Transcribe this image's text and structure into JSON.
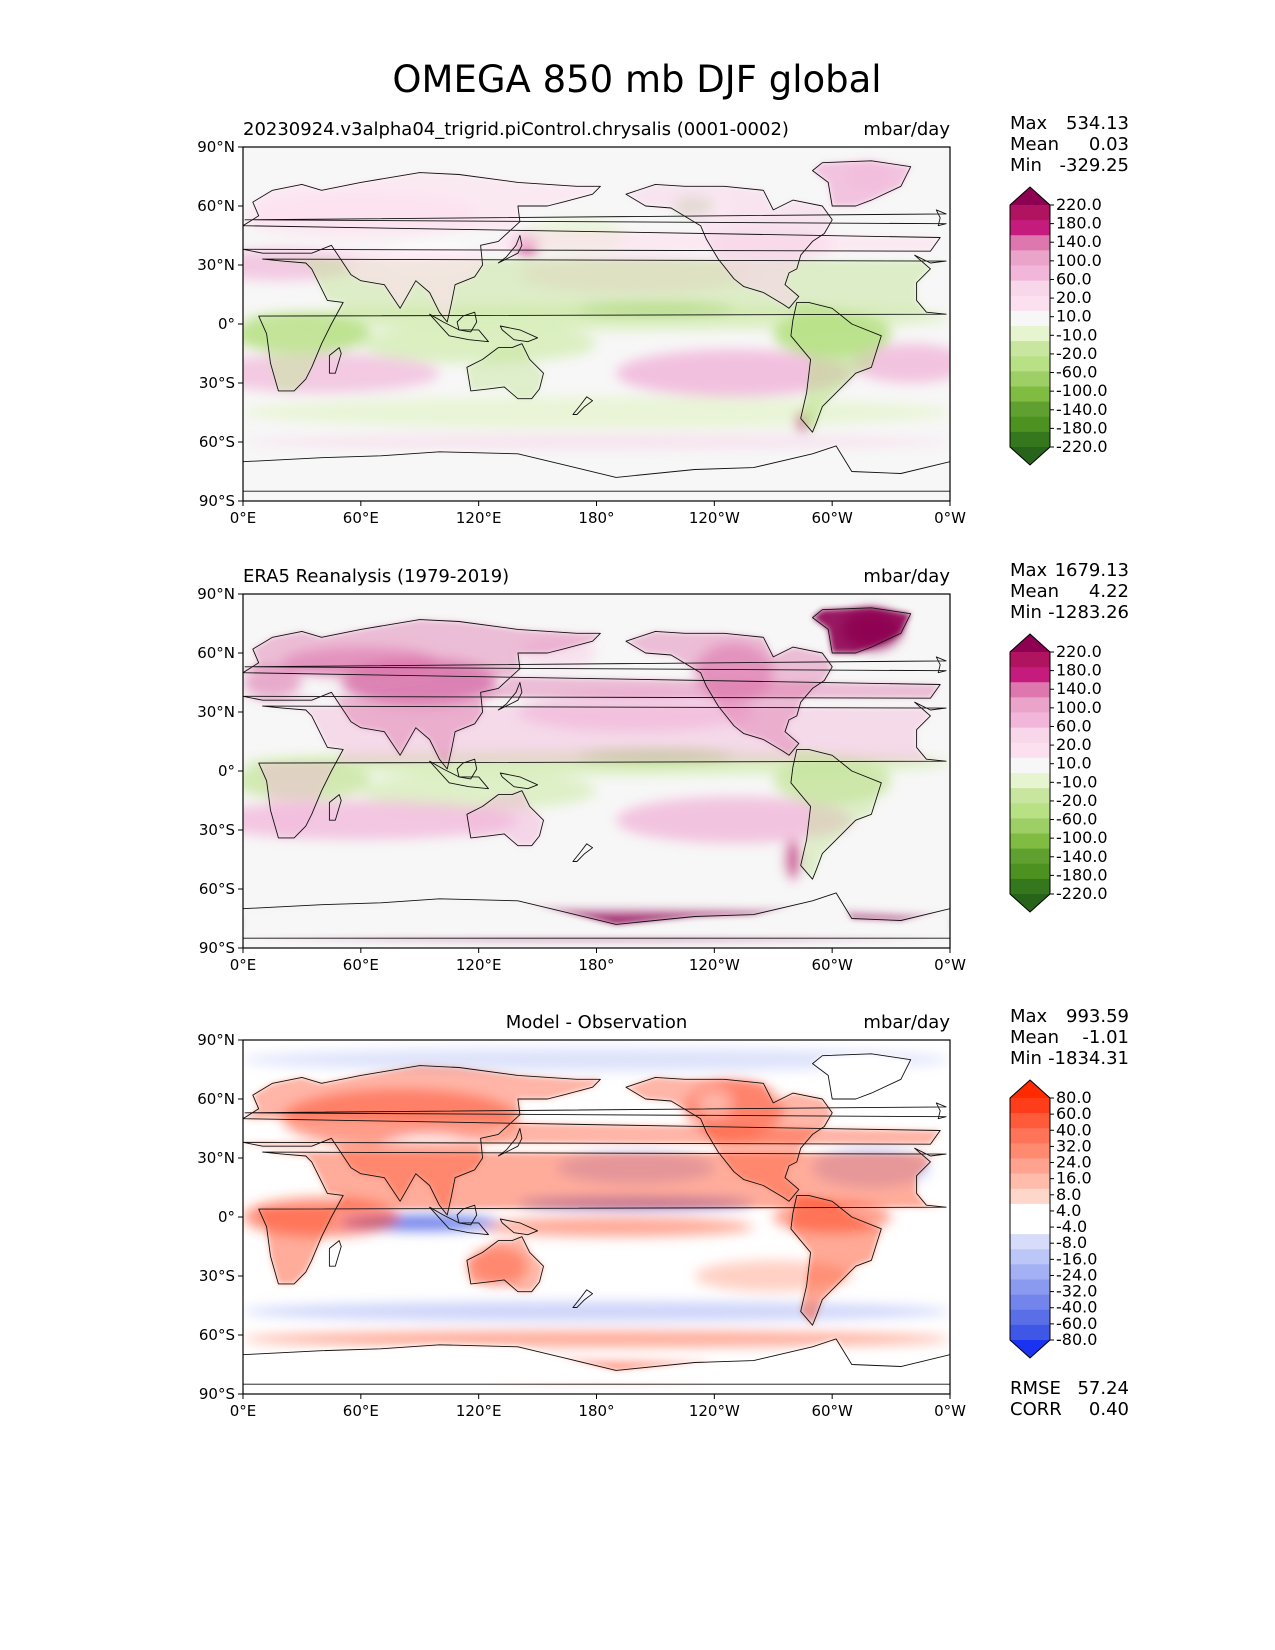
{
  "title": "OMEGA 850 mb DJF global",
  "panels": [
    {
      "id": "model",
      "left_title": "20230924.v3alpha04_trigrid.piControl.chrysalis (0001-0002)",
      "center_title": "",
      "units": "mbar/day",
      "stats": [
        {
          "label": "Max",
          "value": "534.13"
        },
        {
          "label": "Mean",
          "value": "0.03"
        },
        {
          "label": "Min",
          "value": "-329.25"
        }
      ],
      "colorbar": {
        "palette": "diverging-pink-green",
        "labels": [
          "220.0",
          "180.0",
          "140.0",
          "100.0",
          "60.0",
          "20.0",
          "10.0",
          "-10.0",
          "-20.0",
          "-60.0",
          "-100.0",
          "-140.0",
          "-180.0",
          "-220.0"
        ],
        "colors": [
          "#8e0152",
          "#b0135f",
          "#c51b7d",
          "#de77ae",
          "#eba4c9",
          "#f1b6da",
          "#f7d7e9",
          "#fde0ef",
          "#f7f7f7",
          "#e6f5d0",
          "#c8e6a0",
          "#b8e186",
          "#9dcf66",
          "#7fbc41",
          "#5fa030",
          "#4d9221",
          "#35771d",
          "#276419"
        ]
      },
      "extra_stats": []
    },
    {
      "id": "observation",
      "left_title": "ERA5 Reanalysis (1979-2019)",
      "center_title": "",
      "units": "mbar/day",
      "stats": [
        {
          "label": "Max",
          "value": "1679.13"
        },
        {
          "label": "Mean",
          "value": "4.22"
        },
        {
          "label": "Min",
          "value": "-1283.26"
        }
      ],
      "colorbar": {
        "palette": "diverging-pink-green",
        "labels": [
          "220.0",
          "180.0",
          "140.0",
          "100.0",
          "60.0",
          "20.0",
          "10.0",
          "-10.0",
          "-20.0",
          "-60.0",
          "-100.0",
          "-140.0",
          "-180.0",
          "-220.0"
        ],
        "colors": [
          "#8e0152",
          "#b0135f",
          "#c51b7d",
          "#de77ae",
          "#eba4c9",
          "#f1b6da",
          "#f7d7e9",
          "#fde0ef",
          "#f7f7f7",
          "#e6f5d0",
          "#c8e6a0",
          "#b8e186",
          "#9dcf66",
          "#7fbc41",
          "#5fa030",
          "#4d9221",
          "#35771d",
          "#276419"
        ]
      },
      "extra_stats": []
    },
    {
      "id": "difference",
      "left_title": "",
      "center_title": "Model - Observation",
      "units": "mbar/day",
      "stats": [
        {
          "label": "Max",
          "value": "993.59"
        },
        {
          "label": "Mean",
          "value": "-1.01"
        },
        {
          "label": "Min",
          "value": "-1834.31"
        }
      ],
      "colorbar": {
        "palette": "diverging-blue-red",
        "labels": [
          "80.0",
          "60.0",
          "40.0",
          "32.0",
          "24.0",
          "16.0",
          "8.0",
          "4.0",
          "-4.0",
          "-8.0",
          "-16.0",
          "-24.0",
          "-32.0",
          "-40.0",
          "-60.0",
          "-80.0"
        ],
        "colors": [
          "#ff2a00",
          "#ff3d1a",
          "#ff5a3a",
          "#ff7358",
          "#ff8a70",
          "#ffa390",
          "#ffbcab",
          "#ffd6ca",
          "#ffffff",
          "#ffffff",
          "#d6dcfa",
          "#bcc6f7",
          "#a3b0f3",
          "#8a9aef",
          "#7384ec",
          "#5a6ee8",
          "#3f57e6",
          "#1a33f0"
        ]
      },
      "extra_stats": [
        {
          "label": "RMSE",
          "value": "57.24"
        },
        {
          "label": "CORR",
          "value": "0.40"
        }
      ]
    }
  ],
  "axes": {
    "x_ticks": [
      "0°E",
      "60°E",
      "120°E",
      "180°",
      "120°W",
      "60°W",
      "0°W"
    ],
    "y_ticks": [
      "90°N",
      "60°N",
      "30°N",
      "0°",
      "30°S",
      "60°S",
      "90°S"
    ]
  },
  "chart_data": [
    {
      "type": "heatmap",
      "title": "20230924.v3alpha04_trigrid.piControl.chrysalis (0001-0002)",
      "units": "mbar/day",
      "xlim": [
        0,
        360
      ],
      "ylim": [
        -90,
        90
      ],
      "levels": [
        -220,
        -180,
        -140,
        -100,
        -60,
        -20,
        -10,
        10,
        20,
        60,
        100,
        140,
        180,
        220
      ],
      "stats": {
        "max": 534.13,
        "mean": 0.03,
        "min": -329.25
      }
    },
    {
      "type": "heatmap",
      "title": "ERA5 Reanalysis (1979-2019)",
      "units": "mbar/day",
      "xlim": [
        0,
        360
      ],
      "ylim": [
        -90,
        90
      ],
      "levels": [
        -220,
        -180,
        -140,
        -100,
        -60,
        -20,
        -10,
        10,
        20,
        60,
        100,
        140,
        180,
        220
      ],
      "stats": {
        "max": 1679.13,
        "mean": 4.22,
        "min": -1283.26
      }
    },
    {
      "type": "heatmap",
      "title": "Model - Observation",
      "units": "mbar/day",
      "xlim": [
        0,
        360
      ],
      "ylim": [
        -90,
        90
      ],
      "levels": [
        -80,
        -60,
        -40,
        -32,
        -24,
        -16,
        -8,
        -4,
        4,
        8,
        16,
        24,
        32,
        40,
        60,
        80
      ],
      "stats": {
        "max": 993.59,
        "mean": -1.01,
        "min": -1834.31,
        "rmse": 57.24,
        "corr": 0.4
      }
    }
  ]
}
